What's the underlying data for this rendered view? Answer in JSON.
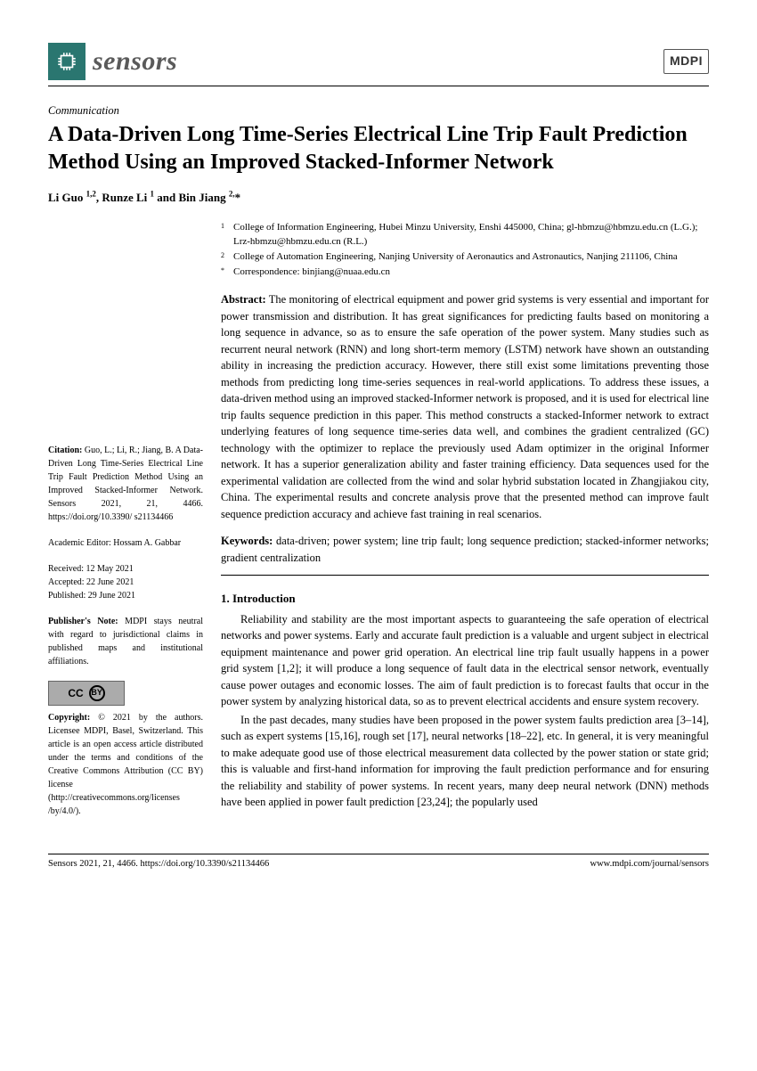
{
  "header": {
    "journal": "sensors",
    "publisher": "MDPI"
  },
  "article": {
    "type": "Communication",
    "title": "A Data-Driven Long Time-Series Electrical Line Trip Fault Prediction Method Using an Improved Stacked-Informer Network",
    "authors_html": "Li Guo <sup>1,2</sup>, Runze Li <sup>1</sup> and Bin Jiang <sup>2,</sup>*"
  },
  "affiliations": [
    {
      "mark": "1",
      "text": "College of Information Engineering, Hubei Minzu University, Enshi 445000, China; gl-hbmzu@hbmzu.edu.cn (L.G.); Lrz-hbmzu@hbmzu.edu.cn (R.L.)"
    },
    {
      "mark": "2",
      "text": "College of Automation Engineering, Nanjing University of Aeronautics and Astronautics, Nanjing 211106, China"
    },
    {
      "mark": "*",
      "text": "Correspondence: binjiang@nuaa.edu.cn"
    }
  ],
  "abstract": {
    "label": "Abstract:",
    "text": "The monitoring of electrical equipment and power grid systems is very essential and important for power transmission and distribution. It has great significances for predicting faults based on monitoring a long sequence in advance, so as to ensure the safe operation of the power system. Many studies such as recurrent neural network (RNN) and long short-term memory (LSTM) network have shown an outstanding ability in increasing the prediction accuracy. However, there still exist some limitations preventing those methods from predicting long time-series sequences in real-world applications. To address these issues, a data-driven method using an improved stacked-Informer network is proposed, and it is used for electrical line trip faults sequence prediction in this paper. This method constructs a stacked-Informer network to extract underlying features of long sequence time-series data well, and combines the gradient centralized (GC) technology with the optimizer to replace the previously used Adam optimizer in the original Informer network. It has a superior generalization ability and faster training efficiency. Data sequences used for the experimental validation are collected from the wind and solar hybrid substation located in Zhangjiakou city, China. The experimental results and concrete analysis prove that the presented method can improve fault sequence prediction accuracy and achieve fast training in real scenarios."
  },
  "keywords": {
    "label": "Keywords:",
    "text": "data-driven; power system; line trip fault; long sequence prediction; stacked-informer networks; gradient centralization"
  },
  "sidebar": {
    "citation_label": "Citation:",
    "citation": "Guo, L.; Li, R.; Jiang, B. A Data-Driven Long Time-Series Electrical Line Trip Fault Prediction Method Using an Improved Stacked-Informer Network. Sensors 2021, 21, 4466. https://doi.org/10.3390/ s21134466",
    "editor": "Academic Editor: Hossam A. Gabbar",
    "received": "Received: 12 May 2021",
    "accepted": "Accepted: 22 June 2021",
    "published": "Published: 29 June 2021",
    "pubnote_label": "Publisher's Note:",
    "pubnote": "MDPI stays neutral with regard to jurisdictional claims in published maps and institutional affiliations.",
    "copyright_label": "Copyright:",
    "copyright": "© 2021 by the authors. Licensee MDPI, Basel, Switzerland. This article is an open access article distributed under the terms and conditions of the Creative Commons Attribution (CC BY) license (http://creativecommons.org/licenses /by/4.0/)."
  },
  "section1": {
    "heading": "1. Introduction",
    "para1": "Reliability and stability are the most important aspects to guaranteeing the safe operation of electrical networks and power systems. Early and accurate fault prediction is a valuable and urgent subject in electrical equipment maintenance and power grid operation. An electrical line trip fault usually happens in a power grid system [1,2]; it will produce a long sequence of fault data in the electrical sensor network, eventually cause power outages and economic losses. The aim of fault prediction is to forecast faults that occur in the power system by analyzing historical data, so as to prevent electrical accidents and ensure system recovery.",
    "para2": "In the past decades, many studies have been proposed in the power system faults prediction area [3–14], such as expert systems [15,16], rough set [17], neural networks [18–22], etc. In general, it is very meaningful to make adequate good use of those electrical measurement data collected by the power station or state grid; this is valuable and first-hand information for improving the fault prediction performance and for ensuring the reliability and stability of power systems. In recent years, many deep neural network (DNN) methods have been applied in power fault prediction [23,24]; the popularly used"
  },
  "footer": {
    "left": "Sensors 2021, 21, 4466. https://doi.org/10.3390/s21134466",
    "right": "www.mdpi.com/journal/sensors"
  }
}
